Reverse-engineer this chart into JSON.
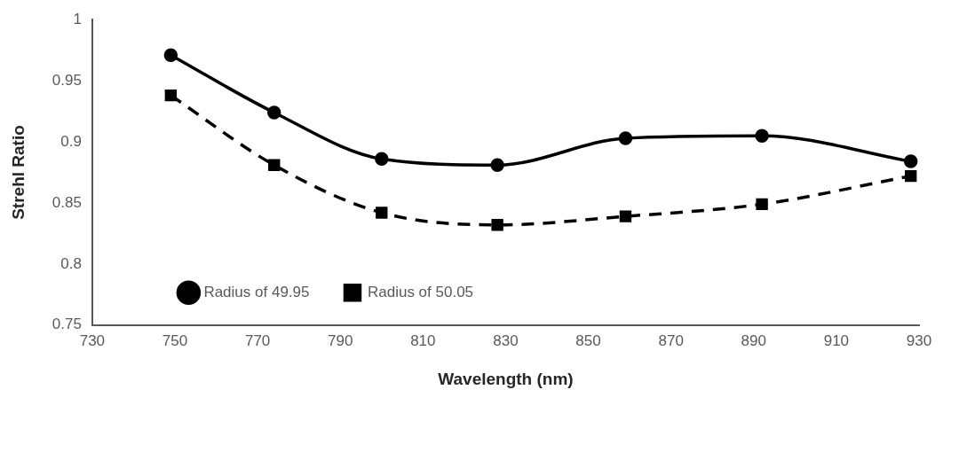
{
  "chart_data": {
    "type": "line",
    "xlabel": "Wavelength (nm)",
    "ylabel": "Strehl Ratio",
    "x": [
      749,
      774,
      800,
      828,
      859,
      892,
      928
    ],
    "series": [
      {
        "name": "Radius of 49.95",
        "color": "#000000",
        "marker": "circle",
        "line_style": "solid",
        "values": [
          0.971,
          0.924,
          0.886,
          0.881,
          0.903,
          0.905,
          0.884
        ]
      },
      {
        "name": "Radius of 50.05",
        "color": "#000000",
        "marker": "square",
        "line_style": "dashed",
        "values": [
          0.938,
          0.881,
          0.842,
          0.832,
          0.839,
          0.849,
          0.872
        ]
      }
    ],
    "xlim": [
      730,
      930
    ],
    "xticks": [
      730,
      750,
      770,
      790,
      810,
      830,
      850,
      870,
      890,
      910,
      930
    ],
    "ylim": [
      0.75,
      1
    ],
    "yticks": [
      0.75,
      0.8,
      0.85,
      0.9,
      0.95,
      1
    ],
    "grid": false,
    "legend": "bottom left"
  }
}
